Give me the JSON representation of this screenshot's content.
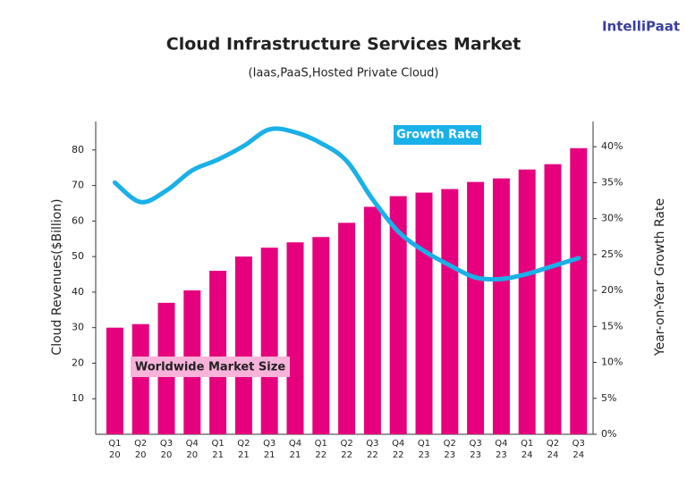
{
  "brand": "IntelliPaat",
  "chart_data": {
    "type": "bar",
    "title": "Cloud Infrastructure Services Market",
    "subtitle": "(Iaas,PaaS,Hosted Private Cloud)",
    "y_label": "Cloud Revenues($Billion)",
    "y2_label": "Year-on-Year Growth Rate",
    "categories": [
      "Q1\n20",
      "Q2\n20",
      "Q3\n20",
      "Q4\n20",
      "Q1\n21",
      "Q2\n21",
      "Q3\n21",
      "Q4\n21",
      "Q1\n22",
      "Q2\n22",
      "Q3\n22",
      "Q4\n22",
      "Q1\n23",
      "Q2\n23",
      "Q3\n23",
      "Q4\n23",
      "Q1\n24",
      "Q2\n24",
      "Q3\n24"
    ],
    "series": [
      {
        "name": "Worldwide Market Size",
        "type": "bar",
        "color": "#e6007e",
        "values": [
          30,
          31,
          37,
          40.5,
          46,
          50,
          52.5,
          54,
          55.5,
          59.5,
          64,
          67,
          68,
          69,
          71,
          72,
          74.5,
          76,
          80.5
        ]
      },
      {
        "name": "Growth Rate",
        "type": "line",
        "axis": "y2",
        "color": "#1ab0e8",
        "values": [
          35,
          32.3,
          33.9,
          36.7,
          38.2,
          40.1,
          42.4,
          42,
          40.5,
          38,
          32.7,
          28.2,
          25.5,
          23.5,
          21.8,
          21.6,
          22.3,
          23.4,
          24.5
        ]
      }
    ],
    "ylim": [
      0,
      88
    ],
    "yticks": [
      10,
      20,
      30,
      40,
      50,
      60,
      70,
      80
    ],
    "y2lim": [
      0,
      43.5
    ],
    "y2ticks": [
      {
        "value": 0,
        "label": "0%"
      },
      {
        "value": 5,
        "label": "5%"
      },
      {
        "value": 10,
        "label": "10%"
      },
      {
        "value": 15,
        "label": "15%"
      },
      {
        "value": 20,
        "label": "20%"
      },
      {
        "value": 25,
        "label": "25%"
      },
      {
        "value": 30,
        "label": "30%"
      },
      {
        "value": 35,
        "label": "35%"
      },
      {
        "value": 40,
        "label": "40%"
      }
    ]
  }
}
